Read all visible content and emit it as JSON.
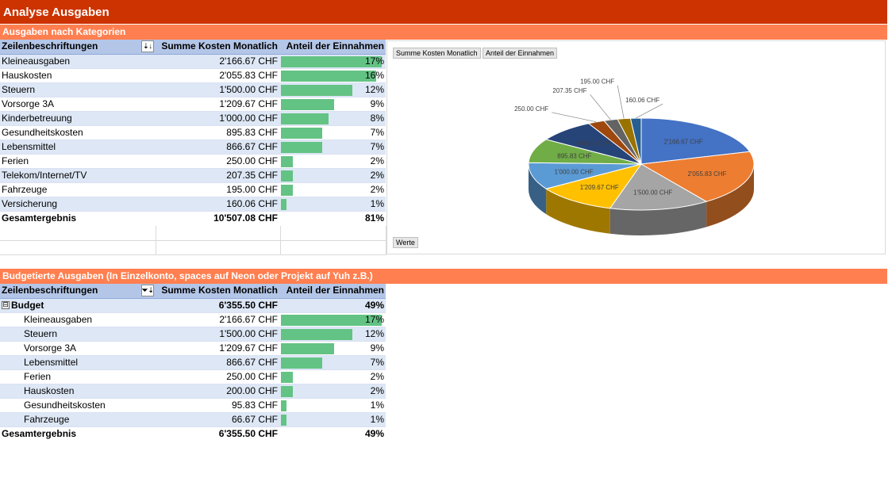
{
  "page": {
    "title": "Analyse Ausgaben"
  },
  "section1": {
    "title": "Ausgaben nach Kategorien",
    "headers": [
      "Zeilenbeschriftungen",
      "Summe Kosten Monatlich",
      "Anteil der Einnahmen"
    ],
    "sort_icon": "sort-icon",
    "rows": [
      {
        "label": "Kleineausgaben",
        "cost": "2'166.67 CHF",
        "share": "17%",
        "share_value": 17
      },
      {
        "label": "Hauskosten",
        "cost": "2'055.83 CHF",
        "share": "16%",
        "share_value": 16
      },
      {
        "label": "Steuern",
        "cost": "1'500.00 CHF",
        "share": "12%",
        "share_value": 12
      },
      {
        "label": "Vorsorge 3A",
        "cost": "1'209.67 CHF",
        "share": "9%",
        "share_value": 9
      },
      {
        "label": "Kinderbetreuung",
        "cost": "1'000.00 CHF",
        "share": "8%",
        "share_value": 8
      },
      {
        "label": "Gesundheitskosten",
        "cost": "895.83 CHF",
        "share": "7%",
        "share_value": 7
      },
      {
        "label": "Lebensmittel",
        "cost": "866.67 CHF",
        "share": "7%",
        "share_value": 7
      },
      {
        "label": "Ferien",
        "cost": "250.00 CHF",
        "share": "2%",
        "share_value": 2
      },
      {
        "label": "Telekom/Internet/TV",
        "cost": "207.35 CHF",
        "share": "2%",
        "share_value": 2
      },
      {
        "label": "Fahrzeuge",
        "cost": "195.00 CHF",
        "share": "2%",
        "share_value": 2
      },
      {
        "label": "Versicherung",
        "cost": "160.06 CHF",
        "share": "1%",
        "share_value": 1
      }
    ],
    "total": {
      "label": "Gesamtergebnis",
      "cost": "10'507.08 CHF",
      "share": "81%"
    }
  },
  "section2": {
    "title": "Budgetierte Ausgaben (In Einzelkonto, spaces auf Neon oder Projekt auf Yuh z.B.)",
    "headers": [
      "Zeilenbeschriftungen",
      "Summe Kosten Monatlich",
      "Anteil der Einnahmen"
    ],
    "filter_icon": "filter-sort-icon",
    "group": {
      "label": "Budget",
      "cost": "6'355.50 CHF",
      "share": "49%",
      "expander": "⊟"
    },
    "rows": [
      {
        "label": "Kleineausgaben",
        "cost": "2'166.67 CHF",
        "share": "17%",
        "share_value": 17
      },
      {
        "label": "Steuern",
        "cost": "1'500.00 CHF",
        "share": "12%",
        "share_value": 12
      },
      {
        "label": "Vorsorge 3A",
        "cost": "1'209.67 CHF",
        "share": "9%",
        "share_value": 9
      },
      {
        "label": "Lebensmittel",
        "cost": "866.67 CHF",
        "share": "7%",
        "share_value": 7
      },
      {
        "label": "Ferien",
        "cost": "250.00 CHF",
        "share": "2%",
        "share_value": 2
      },
      {
        "label": "Hauskosten",
        "cost": "200.00 CHF",
        "share": "2%",
        "share_value": 2
      },
      {
        "label": "Gesundheitskosten",
        "cost": "95.83 CHF",
        "share": "1%",
        "share_value": 1
      },
      {
        "label": "Fahrzeuge",
        "cost": "66.67 CHF",
        "share": "1%",
        "share_value": 1
      }
    ],
    "total": {
      "label": "Gesamtergebnis",
      "cost": "6'355.50 CHF",
      "share": "49%"
    }
  },
  "chart_data": {
    "type": "pie",
    "title": "",
    "field_buttons": [
      "Summe Kosten Monatlich",
      "Anteil der Einnahmen"
    ],
    "values_button": "Werte",
    "slices": [
      {
        "label": "2'166.67 CHF",
        "value": 2166.67,
        "color": "#4472c4"
      },
      {
        "label": "2'055.83 CHF",
        "value": 2055.83,
        "color": "#ed7d31"
      },
      {
        "label": "1'500.00 CHF",
        "value": 1500.0,
        "color": "#a5a5a5"
      },
      {
        "label": "1'209.67 CHF",
        "value": 1209.67,
        "color": "#ffc000"
      },
      {
        "label": "1'000.00 CHF",
        "value": 1000.0,
        "color": "#5b9bd5"
      },
      {
        "label": "895.83 CHF",
        "value": 895.83,
        "color": "#70ad47"
      },
      {
        "label": "866.67 CHF",
        "value": 866.67,
        "color": "#264478"
      },
      {
        "label": "250.00 CHF",
        "value": 250.0,
        "color": "#9e480e"
      },
      {
        "label": "207.35 CHF",
        "value": 207.35,
        "color": "#636363"
      },
      {
        "label": "195.00 CHF",
        "value": 195.0,
        "color": "#997300"
      },
      {
        "label": "160.06 CHF",
        "value": 160.06,
        "color": "#255e91"
      }
    ]
  },
  "colors": {
    "title_bar": "#cc3300",
    "section_bar": "#ff7f50",
    "header_row": "#b4c6e7",
    "band_row": "#dde7f5",
    "data_bar": "#63c384"
  }
}
